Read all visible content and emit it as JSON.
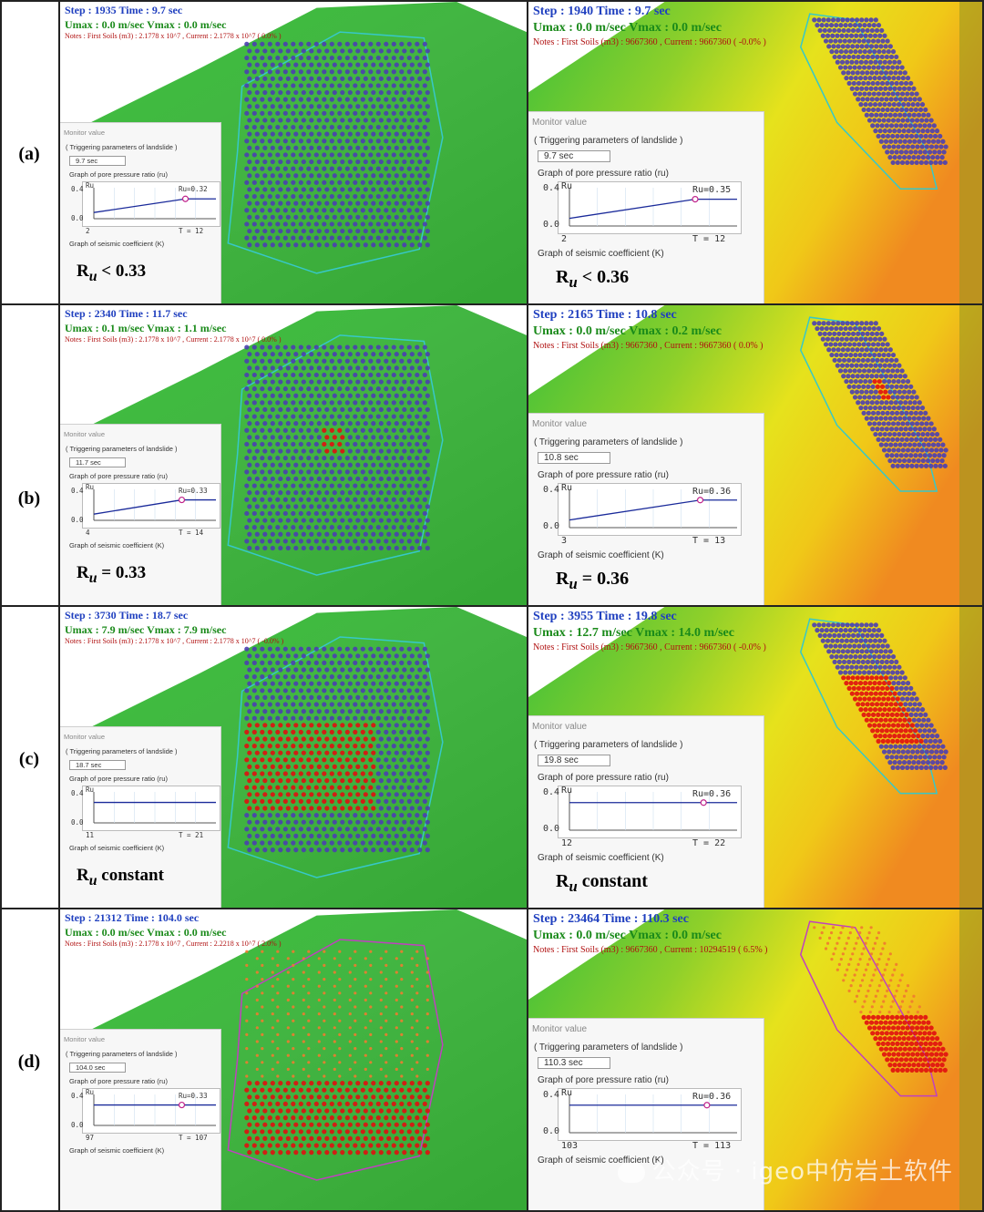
{
  "row_labels": [
    "(a)",
    "(b)",
    "(c)",
    "(d)"
  ],
  "panels": [
    {
      "step": "Step : 1935   Time : 9.7 sec",
      "umax": "Umax : 0.0 m/sec   Vmax : 0.0 m/sec",
      "notes": "Notes :  First Soils (m3) : 2.1778 x 10^7 , Current : 2.1778 x 10^7 ( 0.0% )",
      "monitor_title": "Monitor value",
      "trigger": "( Triggering parameters of landslide )",
      "time_box": "9.7 sec",
      "graph_label": "Graph of pore pressure ratio (ru)",
      "ru_marker": "Ru=0.32",
      "t_end": "T = 12",
      "t_start": "2",
      "y_top": "0.4",
      "y_bottom": "0.0",
      "y_axis": "Ru",
      "k_label": "Graph of seismic coefficient (K)",
      "ru_text_pre": "R",
      "ru_text_sub": "u",
      "ru_text_post": " < 0.33",
      "curve": [
        0.1,
        0.32
      ],
      "knee": 0.75,
      "particles": "blue"
    },
    {
      "step": "Step : 1940   Time : 9.7 sec",
      "umax": "Umax : 0.0 m/sec    Vmax : 0.0 m/sec",
      "notes": "Notes :  First Soils (m3) : 9667360 , Current : 9667360 ( -0.0% )",
      "monitor_title": "Monitor value",
      "trigger": "( Triggering parameters of landslide )",
      "time_box": "9.7 sec",
      "graph_label": "Graph of pore pressure ratio (ru)",
      "ru_marker": "Ru=0.35",
      "t_end": "T = 12",
      "t_start": "2",
      "y_top": "0.4",
      "y_bottom": "0.0",
      "y_axis": "Ru",
      "k_label": "Graph of seismic coefficient (K)",
      "ru_text_pre": "R",
      "ru_text_sub": "u",
      "ru_text_post": " < 0.36",
      "curve": [
        0.1,
        0.35
      ],
      "knee": 0.75,
      "particles": "blue"
    },
    {
      "step": "Step : 2340   Time : 11.7 sec",
      "umax": "Umax : 0.1 m/sec   Vmax : 1.1 m/sec",
      "notes": "Notes :  First Soils (m3) : 2.1778 x 10^7 , Current : 2.1778 x 10^7 ( 0.0% )",
      "monitor_title": "Monitor value",
      "trigger": "( Triggering parameters of landslide )",
      "time_box": "11.7 sec",
      "graph_label": "Graph of pore pressure ratio (ru)",
      "ru_marker": "Ru=0.33",
      "t_end": "T = 14",
      "t_start": "4",
      "y_top": "0.4",
      "y_bottom": "0.0",
      "y_axis": "Ru",
      "k_label": "Graph of seismic coefficient (K)",
      "ru_text_pre": "R",
      "ru_text_sub": "u",
      "ru_text_post": " = 0.33",
      "curve": [
        0.1,
        0.33
      ],
      "knee": 0.72,
      "particles": "blue-small-red"
    },
    {
      "step": "Step : 2165   Time : 10.8 sec",
      "umax": "Umax : 0.0 m/sec    Vmax : 0.2 m/sec",
      "notes": "Notes :  First Soils (m3) : 9667360 , Current : 9667360 ( 0.0% )",
      "monitor_title": "Monitor value",
      "trigger": "( Triggering parameters of landslide )",
      "time_box": "10.8 sec",
      "graph_label": "Graph of pore pressure ratio (ru)",
      "ru_marker": "Ru=0.36",
      "t_end": "T = 13",
      "t_start": "3",
      "y_top": "0.4",
      "y_bottom": "0.0",
      "y_axis": "Ru",
      "k_label": "Graph of seismic coefficient (K)",
      "ru_text_pre": "R",
      "ru_text_sub": "u",
      "ru_text_post": " = 0.36",
      "curve": [
        0.1,
        0.36
      ],
      "knee": 0.78,
      "particles": "blue-small-red"
    },
    {
      "step": "Step : 3730   Time : 18.7 sec",
      "umax": "Umax : 7.9 m/sec   Vmax : 7.9 m/sec",
      "notes": "Notes :  First Soils (m3) : 2.1778 x 10^7 , Current : 2.1778 x 10^7 ( -0.0% )",
      "monitor_title": "Monitor value",
      "trigger": "( Triggering parameters of landslide )",
      "time_box": "18.7 sec",
      "graph_label": "Graph of pore pressure ratio (ru)",
      "ru_marker": "",
      "t_end": "T = 21",
      "t_start": "11",
      "y_top": "0.4",
      "y_bottom": "0.0",
      "y_axis": "Ru",
      "k_label": "Graph of seismic coefficient (K)",
      "ru_text_pre": "R",
      "ru_text_sub": "u",
      "ru_text_post": " constant",
      "curve": [
        0.33,
        0.33
      ],
      "knee": 0.1,
      "particles": "mixed"
    },
    {
      "step": "Step : 3955   Time : 19.8 sec",
      "umax": "Umax : 12.7 m/sec    Vmax : 14.0 m/sec",
      "notes": "Notes :  First Soils (m3) : 9667360 , Current : 9667360 ( -0.0% )",
      "monitor_title": "Monitor value",
      "trigger": "( Triggering parameters of landslide )",
      "time_box": "19.8 sec",
      "graph_label": "Graph of pore pressure ratio (ru)",
      "ru_marker": "Ru=0.36",
      "t_end": "T = 22",
      "t_start": "12",
      "y_top": "0.4",
      "y_bottom": "0.0",
      "y_axis": "Ru",
      "k_label": "Graph of seismic coefficient (K)",
      "ru_text_pre": "R",
      "ru_text_sub": "u",
      "ru_text_post": " constant",
      "curve": [
        0.36,
        0.36
      ],
      "knee": 0.8,
      "particles": "mixed"
    },
    {
      "step": "Step : 21312   Time : 104.0 sec",
      "umax": "Umax : 0.0 m/sec   Vmax : 0.0 m/sec",
      "notes": "Notes :  First Soils (m3) : 2.1778 x 10^7 , Current : 2.2218 x 10^7 ( 2.0% )",
      "monitor_title": "Monitor value",
      "trigger": "( Triggering parameters of landslide )",
      "time_box": "104.0 sec",
      "graph_label": "Graph of pore pressure ratio (ru)",
      "ru_marker": "Ru=0.33",
      "t_end": "T = 107",
      "t_start": "97",
      "y_top": "0.4",
      "y_bottom": "0.0",
      "y_axis": "Ru",
      "k_label": "Graph of seismic coefficient (K)",
      "ru_text_pre": "",
      "ru_text_sub": "",
      "ru_text_post": "",
      "curve": [
        0.33,
        0.33
      ],
      "knee": 0.72,
      "particles": "red"
    },
    {
      "step": "Step : 23464   Time : 110.3 sec",
      "umax": "Umax : 0.0 m/sec    Vmax : 0.0 m/sec",
      "notes": "Notes :  First Soils (m3) : 9667360 , Current : 10294519 ( 6.5% )",
      "monitor_title": "Monitor value",
      "trigger": "( Triggering parameters of landslide )",
      "time_box": "110.3 sec",
      "graph_label": "Graph of pore pressure ratio (ru)",
      "ru_marker": "Ru=0.36",
      "t_end": "T = 113",
      "t_start": "103",
      "y_top": "0.4",
      "y_bottom": "0.0",
      "y_axis": "Ru",
      "k_label": "Graph of seismic coefficient (K)",
      "ru_text_pre": "",
      "ru_text_sub": "",
      "ru_text_post": "",
      "curve": [
        0.36,
        0.36
      ],
      "knee": 0.82,
      "particles": "red"
    }
  ],
  "watermark": "公众号 · igeo中仿岩土软件",
  "colors": {
    "terrain_green": "#3fbf3f",
    "terrain_yellow": "#e8e020",
    "terrain_orange": "#f0a020",
    "particle_blue": "#4b3fb0",
    "particle_red": "#e01010",
    "outline_cyan": "#37c8c8",
    "outline_magenta": "#c040c0"
  }
}
